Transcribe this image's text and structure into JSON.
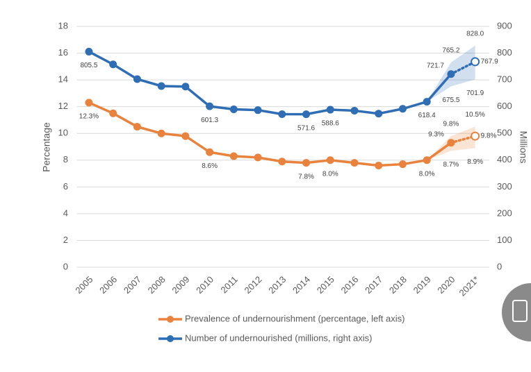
{
  "chart_data": {
    "type": "line",
    "categories": [
      "2005",
      "2006",
      "2007",
      "2008",
      "2009",
      "2010",
      "2011",
      "2012",
      "2013",
      "2014",
      "2015",
      "2016",
      "2017",
      "2018",
      "2019",
      "2020",
      "2021*"
    ],
    "ylabel": "Percentage",
    "y2label": "Millions",
    "ylim": [
      0,
      18
    ],
    "yticks": [
      0,
      2,
      4,
      6,
      8,
      10,
      12,
      14,
      16,
      18
    ],
    "y2lim": [
      0,
      900
    ],
    "y2ticks": [
      0,
      100,
      200,
      300,
      400,
      500,
      600,
      700,
      800,
      900
    ],
    "grid": true,
    "legend": "bottom",
    "series": [
      {
        "name": "Prevalence of undernourishment (percentage, left axis)",
        "color": "#e8823d",
        "axis": "y",
        "values": [
          12.3,
          11.5,
          10.5,
          10.0,
          9.8,
          8.6,
          8.3,
          8.2,
          7.9,
          7.8,
          8.0,
          7.8,
          7.6,
          7.7,
          8.0,
          9.3,
          9.8
        ],
        "value_labels": [
          "12.3%",
          null,
          null,
          null,
          null,
          "8.6%",
          null,
          null,
          null,
          "7.8%",
          "8.0%",
          null,
          null,
          null,
          "8.0%",
          "9.3%",
          "9.8%"
        ],
        "band_lower": [
          null,
          null,
          null,
          null,
          null,
          null,
          null,
          null,
          null,
          null,
          null,
          null,
          null,
          null,
          null,
          8.7,
          8.9
        ],
        "band_lower_labels": [
          null,
          null,
          null,
          null,
          null,
          null,
          null,
          null,
          null,
          null,
          null,
          null,
          null,
          null,
          null,
          "8.7%",
          "8.9%"
        ],
        "band_upper": [
          null,
          null,
          null,
          null,
          null,
          null,
          null,
          null,
          null,
          null,
          null,
          null,
          null,
          null,
          null,
          9.8,
          10.5
        ],
        "band_upper_labels": [
          null,
          null,
          null,
          null,
          null,
          null,
          null,
          null,
          null,
          null,
          null,
          null,
          null,
          null,
          null,
          "9.8%",
          "10.5%"
        ]
      },
      {
        "name": "Number of undernourished (millions, right axis)",
        "color": "#2f6db5",
        "axis": "y2",
        "values": [
          805.5,
          758,
          703,
          677,
          675,
          601.3,
          590,
          587,
          572,
          571.6,
          588.6,
          585,
          574,
          592,
          618.4,
          721.7,
          767.9
        ],
        "value_labels": [
          "805.5",
          null,
          null,
          null,
          null,
          "601.3",
          null,
          null,
          null,
          "571.6",
          "588.6",
          null,
          null,
          null,
          "618.4",
          "721.7",
          "767.9"
        ],
        "band_lower": [
          null,
          null,
          null,
          null,
          null,
          null,
          null,
          null,
          null,
          null,
          null,
          null,
          null,
          null,
          null,
          675.5,
          701.9
        ],
        "band_lower_labels": [
          null,
          null,
          null,
          null,
          null,
          null,
          null,
          null,
          null,
          null,
          null,
          null,
          null,
          null,
          null,
          "675.5",
          "701.9"
        ],
        "band_upper": [
          null,
          null,
          null,
          null,
          null,
          null,
          null,
          null,
          null,
          null,
          null,
          null,
          null,
          null,
          null,
          765.2,
          828.0
        ],
        "band_upper_labels": [
          null,
          null,
          null,
          null,
          null,
          null,
          null,
          null,
          null,
          null,
          null,
          null,
          null,
          null,
          null,
          "765.2",
          "828.0"
        ]
      }
    ]
  }
}
